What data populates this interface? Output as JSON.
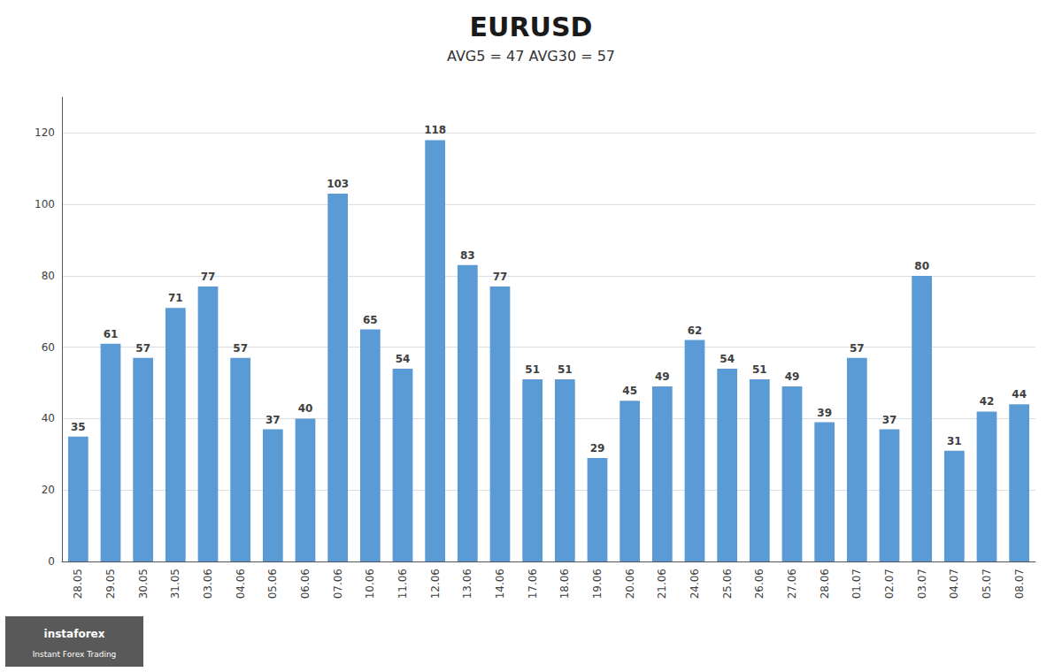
{
  "chart_data": {
    "type": "bar",
    "title": "EURUSD",
    "subtitle": "AVG5 = 47 AVG30 = 57",
    "categories": [
      "28.05",
      "29.05",
      "30.05",
      "31.05",
      "03.06",
      "04.06",
      "05.06",
      "06.06",
      "07.06",
      "10.06",
      "11.06",
      "12.06",
      "13.06",
      "14.06",
      "17.06",
      "18.06",
      "19.06",
      "20.06",
      "21.06",
      "24.06",
      "25.06",
      "26.06",
      "27.06",
      "28.06",
      "01.07",
      "02.07",
      "03.07",
      "04.07",
      "05.07",
      "08.07"
    ],
    "values": [
      35,
      61,
      57,
      71,
      77,
      57,
      37,
      40,
      103,
      65,
      54,
      118,
      83,
      77,
      51,
      51,
      29,
      45,
      49,
      62,
      54,
      51,
      49,
      39,
      57,
      37,
      80,
      31,
      42,
      44
    ],
    "color": "#5b9bd5",
    "ylim": [
      0,
      130
    ],
    "yticks": [
      0,
      20,
      40,
      60,
      80,
      100,
      120
    ],
    "grid": true,
    "data_labels": true,
    "annotations": [
      "instaforex",
      "Instant Forex Trading"
    ]
  }
}
